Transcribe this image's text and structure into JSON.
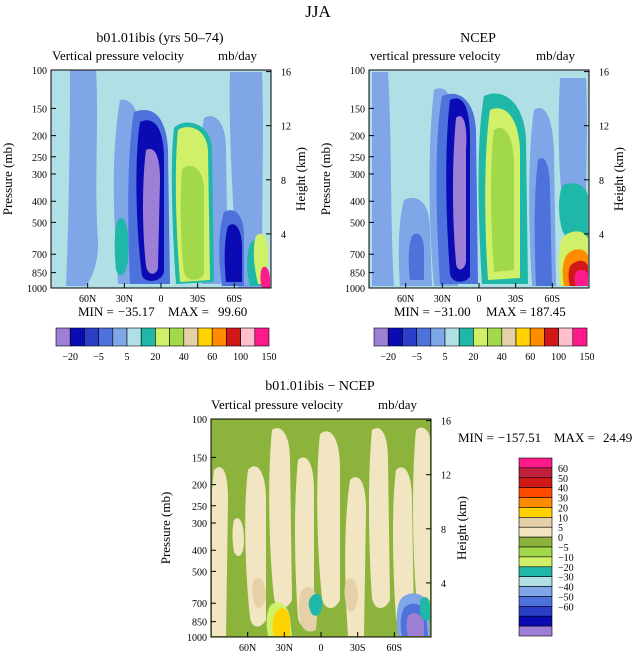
{
  "figure_title": "JJA",
  "colors": {
    "sky": "#b0e0e6",
    "lightblue": "#7fa6e6",
    "medblue": "#4e72dc",
    "royal": "#2a3ec8",
    "navy": "#0b0bb3",
    "purple": "#9d7fd6",
    "lightgreen": "#d0f06a",
    "green": "#a2d94a",
    "teal": "#1fb8a8",
    "tan": "#e6d0a8",
    "wheat": "#f2e6c2",
    "olive": "#8cb43c",
    "red": "#d01818",
    "pink": "#ff1a8c",
    "orange": "#ff8c00"
  },
  "chart_data": [
    {
      "type": "heatmap",
      "panel": "b01.01ibis",
      "title": "b01.01ibis (yrs 50–74)",
      "subtitle": "Vertical pressure velocity",
      "units": "mb/day",
      "ylabel": "Pressure (mb)",
      "ylabel_right": "Height (km)",
      "y_ticks": [
        "100",
        "150",
        "200",
        "250",
        "300",
        "400",
        "500",
        "700",
        "850",
        "1000"
      ],
      "y_right_ticks": [
        "16",
        "12",
        "8",
        "4"
      ],
      "x_ticks": [
        "60N",
        "30N",
        "0",
        "30S",
        "60S"
      ],
      "stats": {
        "min_label": "MIN =",
        "min": "−35.17",
        "max_label": "MAX =",
        "max": "99.60"
      },
      "colorbar_labels": [
        "−20",
        "−5",
        "5",
        "20",
        "40",
        "60",
        "100",
        "150"
      ]
    },
    {
      "type": "heatmap",
      "panel": "NCEP",
      "title": "NCEP",
      "subtitle": "vertical pressure velocity",
      "units": "mb/day",
      "ylabel": "Pressure (mb)",
      "ylabel_right": "Height (km)",
      "y_ticks": [
        "100",
        "150",
        "200",
        "250",
        "300",
        "400",
        "500",
        "700",
        "850",
        "1000"
      ],
      "y_right_ticks": [
        "16",
        "12",
        "8",
        "4"
      ],
      "x_ticks": [
        "60N",
        "30N",
        "0",
        "30S",
        "60S"
      ],
      "stats": {
        "min_label": "MIN =",
        "min": "−31.00",
        "max_label": "MAX =",
        "max": "187.45"
      },
      "colorbar_labels": [
        "−20",
        "−5",
        "5",
        "20",
        "40",
        "60",
        "100",
        "150"
      ]
    },
    {
      "type": "heatmap",
      "panel": "difference",
      "title": "b01.01ibis − NCEP",
      "subtitle": "Vertical pressure velocity",
      "units": "mb/day",
      "ylabel": "Pressure (mb)",
      "ylabel_right": "Height (km)",
      "y_ticks": [
        "100",
        "150",
        "200",
        "250",
        "300",
        "400",
        "500",
        "700",
        "850",
        "1000"
      ],
      "y_right_ticks": [
        "16",
        "12",
        "8",
        "4"
      ],
      "x_ticks": [
        "60N",
        "30N",
        "0",
        "30S",
        "60S"
      ],
      "stats": {
        "min_label": "MIN =",
        "min": "−157.51",
        "max_label": "MAX =",
        "max": "24.49"
      },
      "colorbar_labels": [
        "60",
        "50",
        "40",
        "30",
        "20",
        "10",
        "5",
        "0",
        "−5",
        "−10",
        "−20",
        "−30",
        "−40",
        "−50",
        "−60"
      ]
    }
  ]
}
